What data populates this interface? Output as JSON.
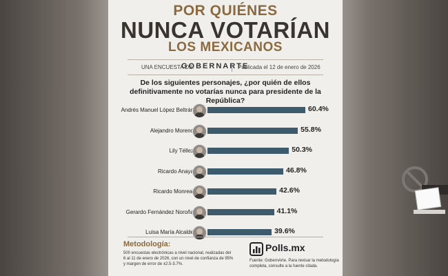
{
  "header": {
    "title_line1": "POR QUIÉNES",
    "title_line2": "NUNCA VOTARÍAN",
    "title_line3": "LOS MEXICANOS",
    "byline": "UNA ENCUESTA DE:",
    "brand": "GOBERNARTE",
    "published": "Publicada el 12 de enero de 2026"
  },
  "question": "De los siguientes personajes, ¿por quién de ellos definitivamente no votarías nunca para presidente de la República?",
  "chart_data": {
    "type": "bar",
    "orientation": "horizontal",
    "categories": [
      "Andrés Manuel López Beltrán",
      "Alejandro Moreno",
      "Lily Téllez",
      "Ricardo Anaya",
      "Ricardo Monreal",
      "Gerardo Fernández Noroña",
      "Luisa María Alcalde"
    ],
    "values": [
      60.4,
      55.8,
      50.3,
      46.8,
      42.6,
      41.1,
      39.6
    ],
    "value_labels": [
      "60.4%",
      "55.8%",
      "50.3%",
      "46.8%",
      "42.6%",
      "41.1%",
      "39.6%"
    ],
    "bar_color": "#3e5b6e",
    "grid": false,
    "legend": "none"
  },
  "footer": {
    "methodology_title": "Metodología:",
    "methodology_text": "500 encuestas electrónicas a nivel nacional, realizadas del 6 al 11 de enero de 2026, con un nivel de confianza de 95% y margen de error de ±2.5-3.7%.",
    "logo_name": "Polls.mx",
    "source_text": "Fuente: GobernArte. Para revisar la metodología completa, consulte a la fuente citada."
  },
  "icons": [
    "person-avatar-icon",
    "polls-logo-icon",
    "ballot-box-no-sign-icon"
  ],
  "colors": {
    "accent": "#8a6a3e",
    "title": "#3a3430",
    "bar": "#3e5b6e",
    "background": "#f1efec"
  }
}
